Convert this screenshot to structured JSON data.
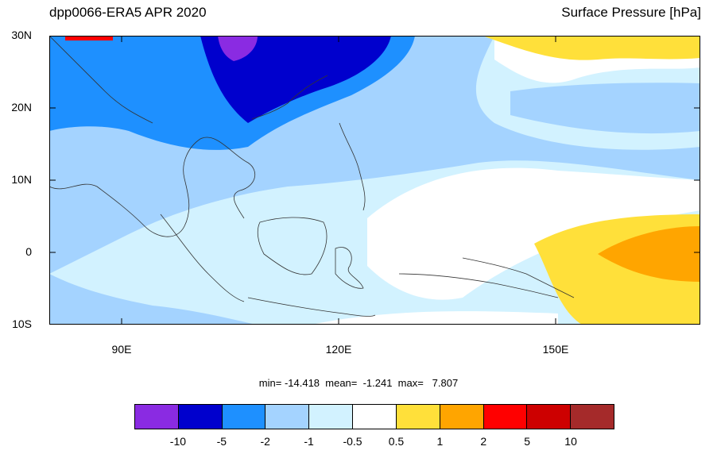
{
  "header": {
    "left_title": "dpp0066-ERA5 APR 2020",
    "right_title": "Surface Pressure [hPa]"
  },
  "map": {
    "lat_labels": [
      "30N",
      "20N",
      "10N",
      "0",
      "10S"
    ],
    "lon_labels": [
      "90E",
      "120E",
      "150E"
    ]
  },
  "stats": {
    "text": "min= -14.418  mean=  -1.241  max=   7.807"
  },
  "colorbar": {
    "colors": [
      "#8a2be2",
      "#0000cd",
      "#1e90ff",
      "#a4d3ff",
      "#d2f2ff",
      "#ffffff",
      "#ffe03a",
      "#ffa500",
      "#ff0000",
      "#cd0000",
      "#a52a2a"
    ],
    "labels": [
      "-10",
      "-5",
      "-2",
      "-1",
      "-0.5",
      "0.5",
      "1",
      "2",
      "5",
      "10"
    ]
  }
}
